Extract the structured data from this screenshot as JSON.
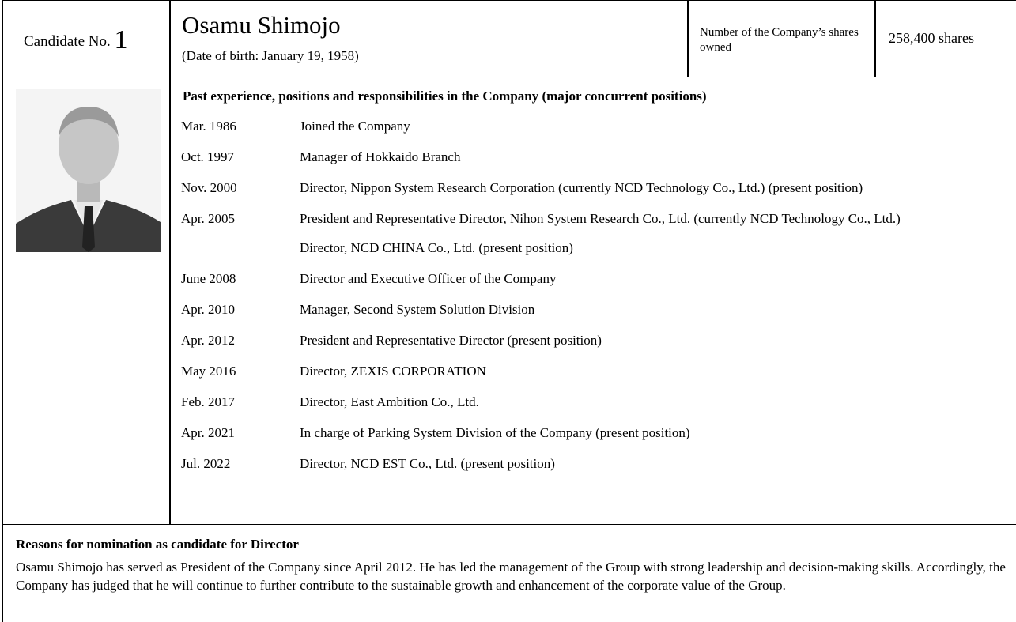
{
  "header": {
    "candidate_label": "Candidate No.",
    "candidate_number": "1",
    "name": "Osamu Shimojo",
    "birth": "(Date of birth: January 19, 1958)",
    "shares_label": "Number of the Company’s shares owned",
    "shares_value": "258,400 shares"
  },
  "career": {
    "title": "Past experience, positions and responsibilities in the Company (major concurrent positions)",
    "entries": [
      {
        "date": "Mar. 1986",
        "lines": [
          "Joined the Company"
        ]
      },
      {
        "date": "Oct. 1997",
        "lines": [
          "Manager of Hokkaido Branch"
        ]
      },
      {
        "date": "Nov. 2000",
        "lines": [
          "Director, Nippon System Research Corporation (currently NCD Technology Co., Ltd.) (present position)"
        ]
      },
      {
        "date": "Apr. 2005",
        "lines": [
          "President and Representative Director, Nihon System Research Co., Ltd. (currently NCD Technology Co., Ltd.)",
          "Director, NCD CHINA Co., Ltd. (present position)"
        ]
      },
      {
        "date": "June 2008",
        "lines": [
          "Director and Executive Officer of the Company"
        ]
      },
      {
        "date": "Apr. 2010",
        "lines": [
          "Manager, Second System Solution Division"
        ]
      },
      {
        "date": "Apr. 2012",
        "lines": [
          "President and Representative Director (present position)"
        ]
      },
      {
        "date": "May 2016",
        "lines": [
          "Director, ZEXIS CORPORATION"
        ]
      },
      {
        "date": "Feb. 2017",
        "lines": [
          "Director, East Ambition Co., Ltd."
        ]
      },
      {
        "date": "Apr. 2021",
        "lines": [
          "In charge of Parking System Division of the Company (present position)"
        ]
      },
      {
        "date": "Jul. 2022",
        "lines": [
          "Director, NCD EST Co., Ltd. (present position)"
        ]
      }
    ]
  },
  "reasons": {
    "title": "Reasons for nomination as candidate for Director",
    "text": "Osamu Shimojo has served as President of the Company since April 2012. He has led the management of the Group with strong leadership and decision-making skills. Accordingly, the Company has judged that he will continue to further contribute to the sustainable growth and enhancement of the corporate value of the Group."
  }
}
